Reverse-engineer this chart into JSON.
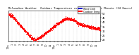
{
  "title": "Milwaukee Weather  Outdoor Temperature vs Wind Chill per Minute (24 Hours)",
  "legend_label_blue": "Wind Chill",
  "legend_label_red": "Outdoor Temp",
  "background_color": "#ffffff",
  "plot_bg_color": "#ffffff",
  "scatter_color": "#ff0000",
  "wind_chill_color": "#0000cc",
  "ylim": [
    18,
    53
  ],
  "yticks": [
    20,
    25,
    30,
    35,
    40,
    45,
    50
  ],
  "title_fontsize": 2.8,
  "tick_fontsize": 2.5,
  "dot_size": 0.4,
  "grid_color": "#bbbbbb",
  "xtick_positions": [
    0,
    60,
    120,
    180,
    240,
    300,
    360,
    420,
    480,
    540,
    600,
    660,
    720,
    780,
    840,
    900,
    960,
    1020,
    1080,
    1140,
    1200,
    1260,
    1320,
    1380
  ],
  "xtick_labels": [
    "12a",
    "1",
    "2",
    "3",
    "4",
    "5",
    "6",
    "7",
    "8",
    "9",
    "10",
    "11",
    "12p",
    "1",
    "2",
    "3",
    "4",
    "5",
    "6",
    "7",
    "8",
    "9",
    "10",
    "11"
  ]
}
